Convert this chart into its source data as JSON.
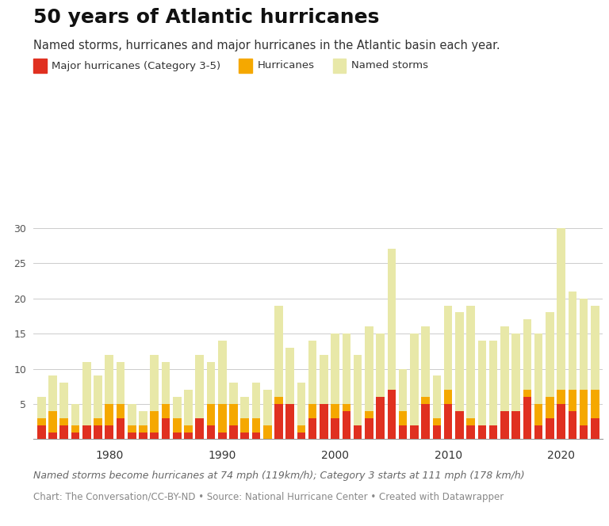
{
  "title": "50 years of Atlantic hurricanes",
  "subtitle": "Named storms, hurricanes and major hurricanes in the Atlantic basin each year.",
  "footnote": "Named storms become hurricanes at 74 mph (119km/h); Category 3 starts at 111 mph (178 km/h)",
  "source": "Chart: The Conversation/CC-BY-ND • Source: National Hurricane Center • Created with Datawrapper",
  "legend": [
    "Major hurricanes (Category 3-5)",
    "Hurricanes",
    "Named storms"
  ],
  "colors": {
    "major": "#e03020",
    "hurricane": "#f5a800",
    "named": "#e8e8a8"
  },
  "years": [
    1974,
    1975,
    1976,
    1977,
    1978,
    1979,
    1980,
    1981,
    1982,
    1983,
    1984,
    1985,
    1986,
    1987,
    1988,
    1989,
    1990,
    1991,
    1992,
    1993,
    1994,
    1995,
    1996,
    1997,
    1998,
    1999,
    2000,
    2001,
    2002,
    2003,
    2004,
    2005,
    2006,
    2007,
    2008,
    2009,
    2010,
    2011,
    2012,
    2013,
    2014,
    2015,
    2016,
    2017,
    2018,
    2019,
    2020,
    2021,
    2022,
    2023
  ],
  "major_hurricanes": [
    2,
    1,
    2,
    1,
    2,
    2,
    2,
    3,
    1,
    1,
    1,
    3,
    1,
    1,
    3,
    2,
    1,
    2,
    1,
    1,
    0,
    5,
    6,
    1,
    3,
    5,
    3,
    4,
    2,
    3,
    6,
    7,
    2,
    2,
    5,
    2,
    5,
    4,
    2,
    2,
    2,
    4,
    4,
    6,
    2,
    3,
    5,
    4,
    2,
    3
  ],
  "hurricanes": [
    3,
    4,
    3,
    2,
    2,
    3,
    5,
    5,
    2,
    2,
    4,
    5,
    3,
    2,
    3,
    5,
    5,
    5,
    3,
    3,
    2,
    6,
    5,
    2,
    5,
    5,
    5,
    5,
    2,
    4,
    6,
    7,
    4,
    2,
    6,
    3,
    7,
    4,
    3,
    2,
    2,
    4,
    4,
    7,
    5,
    6,
    7,
    7,
    7,
    7
  ],
  "named_storms": [
    6,
    9,
    8,
    5,
    11,
    9,
    12,
    11,
    5,
    4,
    12,
    11,
    6,
    7,
    12,
    11,
    14,
    8,
    6,
    8,
    7,
    19,
    13,
    8,
    14,
    12,
    15,
    15,
    12,
    16,
    15,
    27,
    10,
    15,
    16,
    9,
    19,
    18,
    19,
    14,
    14,
    16,
    15,
    17,
    15,
    18,
    30,
    21,
    20,
    19
  ],
  "ylim": [
    0,
    31
  ],
  "yticks": [
    5,
    10,
    15,
    20,
    25,
    30
  ],
  "background_color": "#ffffff",
  "bar_width": 0.75
}
